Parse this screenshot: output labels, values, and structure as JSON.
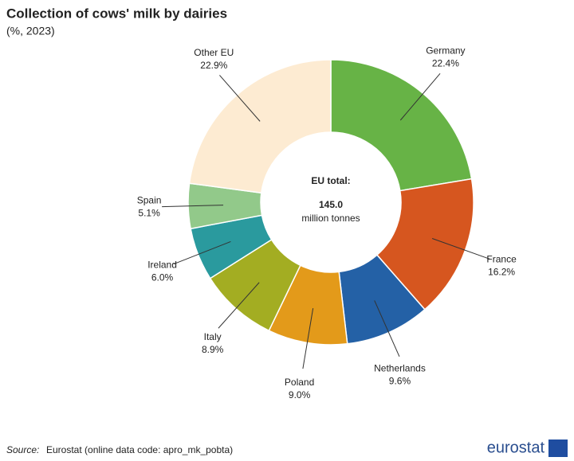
{
  "chart_data": {
    "type": "pie",
    "title": "Collection of cows' milk by dairies",
    "subtitle": "(%, 2023)",
    "categories": [
      "Germany",
      "France",
      "Netherlands",
      "Poland",
      "Italy",
      "Ireland",
      "Spain",
      "Other EU"
    ],
    "values": [
      22.4,
      16.2,
      9.6,
      9.0,
      8.9,
      6.0,
      5.1,
      22.9
    ],
    "value_labels": [
      "22.4%",
      "16.2%",
      "9.6%",
      "9.0%",
      "8.9%",
      "6.0%",
      "5.1%",
      "22.9%"
    ],
    "colors": [
      "#67b346",
      "#d6561f",
      "#2461a6",
      "#e39a1a",
      "#a3ad22",
      "#2a9a9e",
      "#92c98a",
      "#fdebd2"
    ],
    "center_title": "EU total:",
    "total": {
      "value": 145.0,
      "label": "145.0"
    },
    "total_unit": "million tonnes"
  },
  "source_label": "Source:",
  "source": "Eurostat (online data code: apro_mk_pobta)",
  "logo": "eurostat"
}
